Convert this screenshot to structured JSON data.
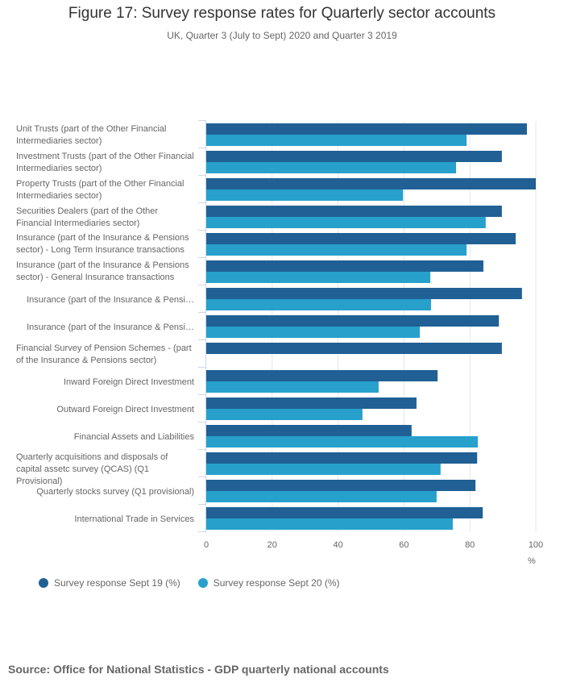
{
  "chart_data": {
    "type": "bar",
    "orientation": "horizontal",
    "title": "Figure 17: Survey response rates for Quarterly sector accounts",
    "subtitle": "UK, Quarter 3 (July to Sept) 2020 and Quarter 3 2019",
    "xlabel": "%",
    "xlim": [
      0,
      100
    ],
    "xticks": [
      "0",
      "20",
      "40",
      "60",
      "80",
      "100"
    ],
    "grid": true,
    "legend_position": "bottom-left",
    "categories": [
      "Unit Trusts (part of the Other Financial Intermediaries sector)",
      "Investment Trusts (part of the Other Financial Intermediaries sector)",
      "Property Trusts (part of the Other Financial Intermediaries sector)",
      "Securities Dealers (part of the Other Financial Intermediaries sector)",
      "Insurance (part of the Insurance & Pensions sector) - Long Term Insurance transactions",
      "Insurance (part of the Insurance & Pensions sector) - General Insurance transactions",
      "Insurance (part of the Insurance & Pensi…",
      "Insurance (part of the Insurance & Pensi…",
      "Financial Survey of Pension Schemes - (part of the Insurance & Pensions sector)",
      "Inward Foreign Direct Investment",
      "Outward Foreign Direct Investment",
      "Financial Assets and Liabilities",
      "Quarterly acquisitions and disposals of capital assetc survey (QCAS) (Q1 Provisional)",
      "Quarterly stocks survey (Q1 provisional)",
      "International Trade in Services"
    ],
    "series": [
      {
        "name": "Survey response Sept 19 (%)",
        "color": "#206095",
        "values": [
          97.3,
          89.7,
          100,
          89.7,
          93.9,
          84.1,
          95.8,
          88.8,
          89.7,
          70.2,
          63.8,
          62.3,
          82.2,
          81.7,
          83.9
        ]
      },
      {
        "name": "Survey response Sept 20 (%)",
        "color": "#27a0cc",
        "values": [
          79,
          75.8,
          59.7,
          84.8,
          79,
          68,
          68.2,
          64.8,
          null,
          52.3,
          47.4,
          82.4,
          71.1,
          69.9,
          74.8
        ]
      }
    ]
  },
  "source": "Source: Office for National Statistics - GDP quarterly national accounts"
}
